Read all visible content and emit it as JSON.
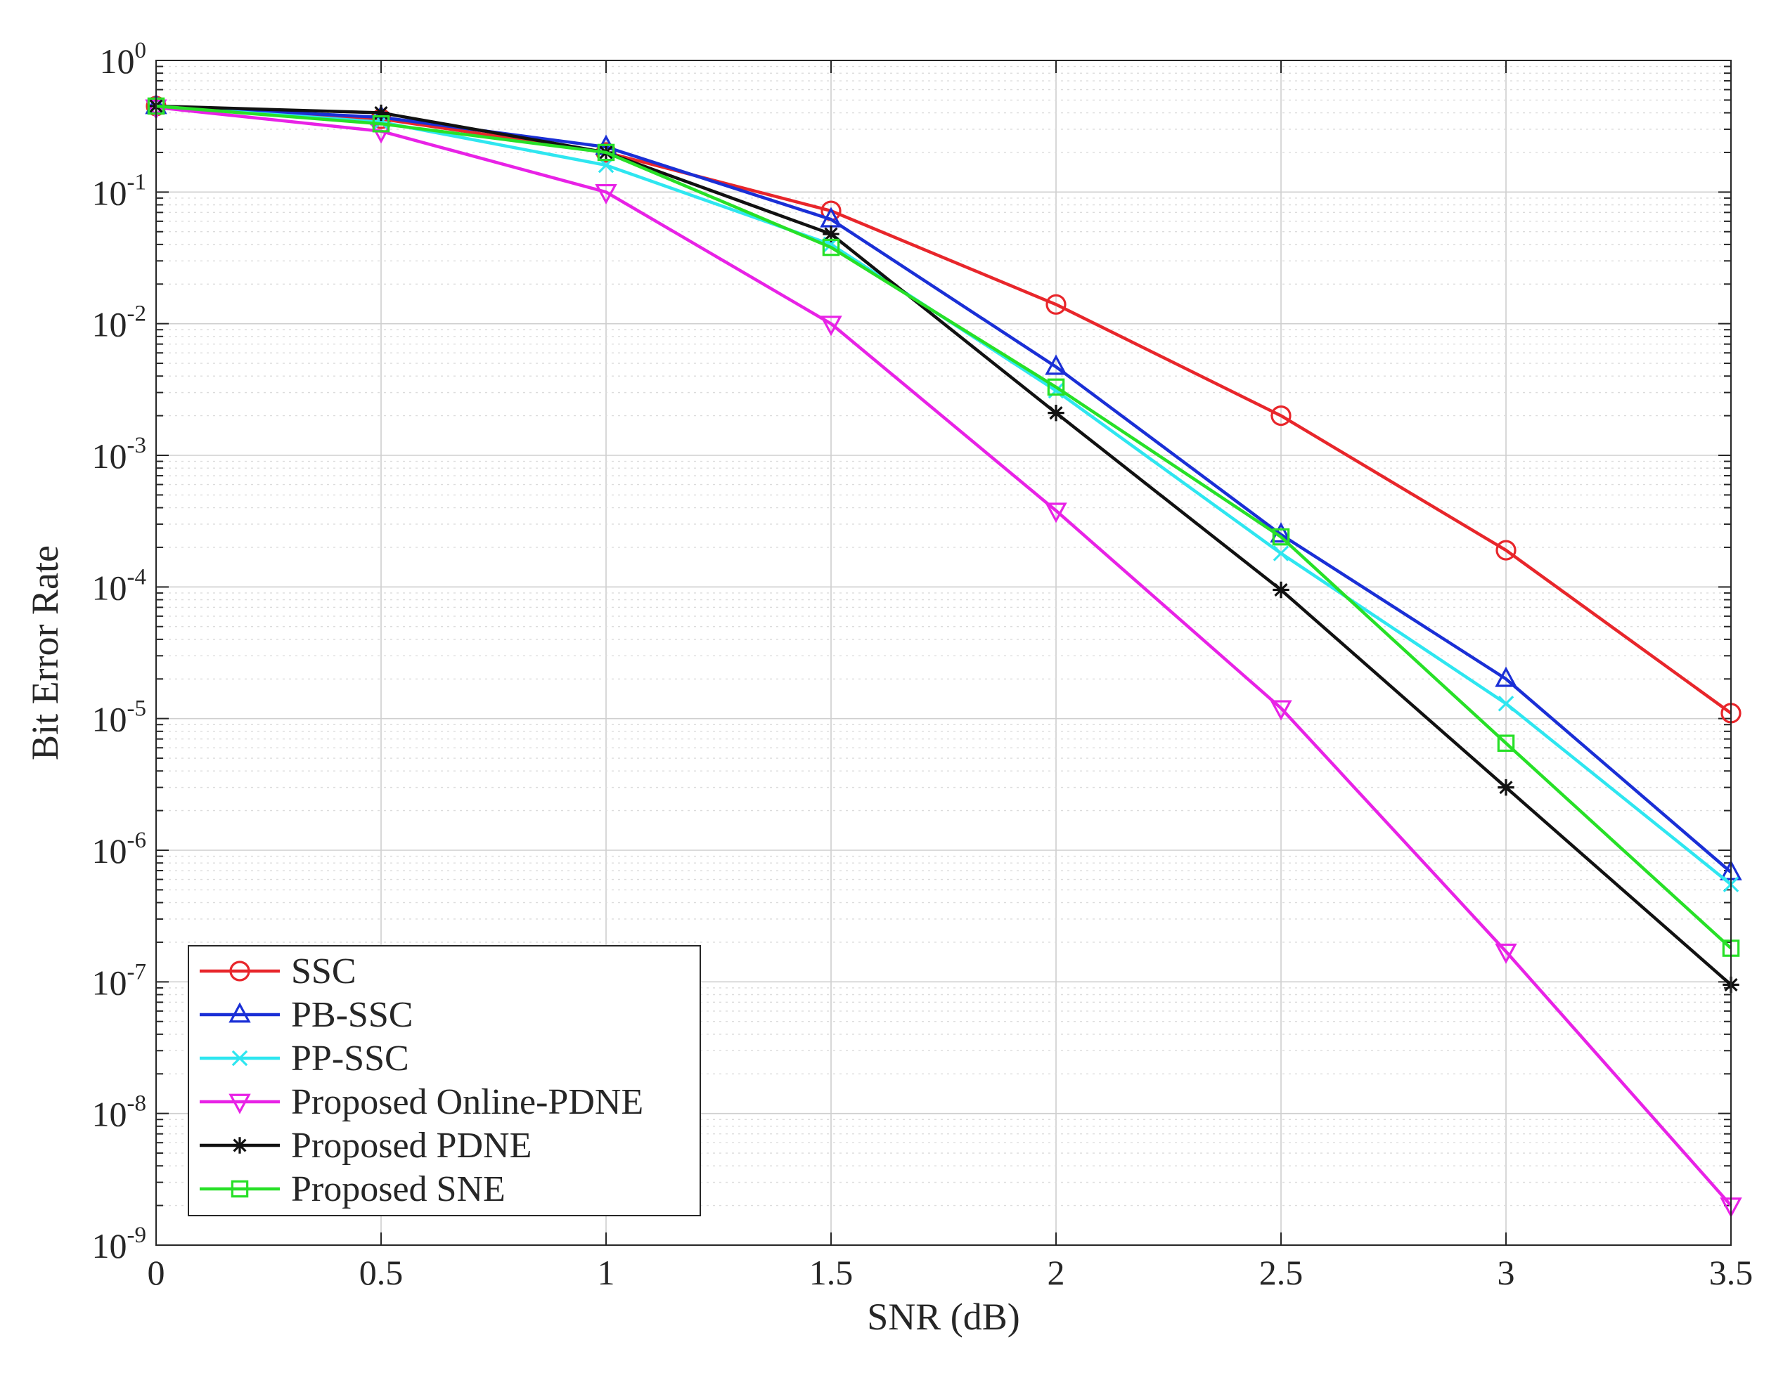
{
  "chart_data": {
    "type": "line",
    "title": "",
    "xlabel": "SNR (dB)",
    "ylabel": "Bit Error Rate",
    "yscale": "log",
    "xlim": [
      0,
      3.5
    ],
    "ylim": [
      1e-09,
      1
    ],
    "grid": true,
    "legend_location": "bottom-left",
    "x": [
      0,
      0.5,
      1,
      1.5,
      2,
      2.5,
      3,
      3.5
    ],
    "xticks": [
      0,
      0.5,
      1,
      1.5,
      2,
      2.5,
      3,
      3.5
    ],
    "xtick_labels": [
      "0",
      "0.5",
      "1",
      "1.5",
      "2",
      "2.5",
      "3",
      "3.5"
    ],
    "yticks": [
      {
        "exp": 0,
        "base": "10",
        "sup": "0"
      },
      {
        "exp": -1,
        "base": "10",
        "sup": "-1"
      },
      {
        "exp": -2,
        "base": "10",
        "sup": "-2"
      },
      {
        "exp": -3,
        "base": "10",
        "sup": "-3"
      },
      {
        "exp": -4,
        "base": "10",
        "sup": "-4"
      },
      {
        "exp": -5,
        "base": "10",
        "sup": "-5"
      },
      {
        "exp": -6,
        "base": "10",
        "sup": "-6"
      },
      {
        "exp": -7,
        "base": "10",
        "sup": "-7"
      },
      {
        "exp": -8,
        "base": "10",
        "sup": "-8"
      },
      {
        "exp": -9,
        "base": "10",
        "sup": "-9"
      }
    ],
    "series": [
      {
        "name": "SSC",
        "color": "#e8262b",
        "marker": "circle",
        "values": [
          0.45,
          0.36,
          0.2,
          0.072,
          0.014,
          0.002,
          0.00019,
          1.1e-05
        ]
      },
      {
        "name": "PB-SSC",
        "color": "#1a2fd6",
        "marker": "triangle-up",
        "values": [
          0.45,
          0.37,
          0.22,
          0.062,
          0.0047,
          0.00025,
          2e-05,
          6.8e-07
        ]
      },
      {
        "name": "PP-SSC",
        "color": "#2ee6f0",
        "marker": "x",
        "values": [
          0.45,
          0.34,
          0.16,
          0.04,
          0.0031,
          0.00018,
          1.3e-05,
          5.5e-07
        ]
      },
      {
        "name": "Proposed Online-PDNE",
        "color": "#e822e6",
        "marker": "triangle-down",
        "values": [
          0.44,
          0.29,
          0.1,
          0.01,
          0.00038,
          1.2e-05,
          1.7e-07,
          2e-09
        ]
      },
      {
        "name": "Proposed PDNE",
        "color": "#111111",
        "marker": "asterisk",
        "values": [
          0.45,
          0.4,
          0.2,
          0.048,
          0.0021,
          9.5e-05,
          3e-06,
          9.5e-08
        ]
      },
      {
        "name": "Proposed SNE",
        "color": "#27e027",
        "marker": "square",
        "values": [
          0.45,
          0.33,
          0.2,
          0.038,
          0.0033,
          0.00024,
          6.5e-06,
          1.8e-07
        ]
      }
    ]
  }
}
